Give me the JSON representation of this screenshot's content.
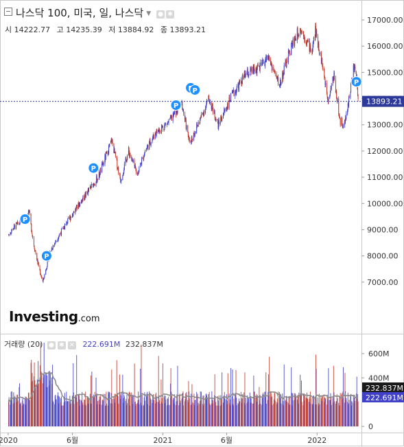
{
  "header": {
    "symbol_title": "나스닥 100, 미국, 일, 나스닥",
    "ohlc": [
      {
        "label": "시",
        "value": "14222.77"
      },
      {
        "label": "고",
        "value": "14235.39"
      },
      {
        "label": "저",
        "value": "13884.92"
      },
      {
        "label": "종",
        "value": "13893.21"
      }
    ]
  },
  "volume_header": {
    "title": "거래량 (20)",
    "value_blue": "222.691M",
    "value_dark": "232.837M"
  },
  "logo": {
    "brand": "Investing",
    "suffix": ".com"
  },
  "colors": {
    "up": "#3f3fc7",
    "down": "#c0392b",
    "marker": "#1e90ff",
    "price_line": "#2d3a9a",
    "ma_line": "#8a8a8a",
    "badge_dark": "#1a1a1a",
    "badge_blue": "#3f3fc7"
  },
  "chart_data": {
    "type": "candlestick",
    "price_axis": {
      "ylim": [
        6000,
        17800
      ],
      "ticks": [
        "17000.00",
        "16000.00",
        "15000.00",
        "14000.00",
        "13000.00",
        "12000.00",
        "11000.00",
        "10000.00",
        "9000.00",
        "8000.00",
        "7000.00"
      ]
    },
    "current_price_label": "13893.21",
    "volume_axis": {
      "ylim": [
        0,
        700
      ],
      "ticks": [
        "600M",
        "400M",
        "0"
      ],
      "last_labels": [
        "232.837M",
        "222.691M"
      ]
    },
    "x_ticks": [
      "2020",
      "6월",
      "2021",
      "6월",
      "2022"
    ],
    "marker_symbol": "P",
    "price_path": [
      {
        "d": "2020-01-02",
        "c": 8800
      },
      {
        "d": "2020-01-15",
        "c": 9100
      },
      {
        "d": "2020-02-01",
        "c": 9300
      },
      {
        "d": "2020-02-19",
        "c": 9700
      },
      {
        "d": "2020-03-01",
        "c": 8500
      },
      {
        "d": "2020-03-10",
        "c": 7800
      },
      {
        "d": "2020-03-23",
        "c": 7000
      },
      {
        "d": "2020-04-10",
        "c": 8200
      },
      {
        "d": "2020-05-01",
        "c": 8800
      },
      {
        "d": "2020-06-01",
        "c": 9600
      },
      {
        "d": "2020-07-01",
        "c": 10300
      },
      {
        "d": "2020-08-01",
        "c": 11000
      },
      {
        "d": "2020-09-02",
        "c": 12400
      },
      {
        "d": "2020-09-23",
        "c": 10900
      },
      {
        "d": "2020-10-12",
        "c": 12000
      },
      {
        "d": "2020-11-01",
        "c": 11100
      },
      {
        "d": "2020-11-20",
        "c": 12000
      },
      {
        "d": "2020-12-15",
        "c": 12700
      },
      {
        "d": "2021-01-15",
        "c": 13100
      },
      {
        "d": "2021-02-15",
        "c": 13800
      },
      {
        "d": "2021-03-05",
        "c": 12300
      },
      {
        "d": "2021-03-25",
        "c": 13000
      },
      {
        "d": "2021-04-20",
        "c": 14000
      },
      {
        "d": "2021-05-12",
        "c": 13000
      },
      {
        "d": "2021-06-10",
        "c": 14000
      },
      {
        "d": "2021-07-15",
        "c": 14900
      },
      {
        "d": "2021-08-20",
        "c": 15200
      },
      {
        "d": "2021-09-07",
        "c": 15600
      },
      {
        "d": "2021-10-04",
        "c": 14500
      },
      {
        "d": "2021-11-01",
        "c": 16000
      },
      {
        "d": "2021-11-22",
        "c": 16700
      },
      {
        "d": "2021-12-20",
        "c": 15800
      },
      {
        "d": "2021-12-28",
        "c": 16600
      },
      {
        "d": "2022-01-10",
        "c": 15600
      },
      {
        "d": "2022-01-27",
        "c": 14000
      },
      {
        "d": "2022-02-10",
        "c": 14900
      },
      {
        "d": "2022-02-24",
        "c": 13100
      },
      {
        "d": "2022-03-08",
        "c": 13050
      },
      {
        "d": "2022-03-29",
        "c": 15200
      },
      {
        "d": "2022-04-05",
        "c": 14700
      },
      {
        "d": "2022-04-08",
        "c": 13893
      }
    ],
    "markers": [
      {
        "d": "2020-02-10",
        "price": 9400
      },
      {
        "d": "2020-04-01",
        "price": 8000
      },
      {
        "d": "2020-07-21",
        "price": 11350
      },
      {
        "d": "2021-02-01",
        "price": 13750
      },
      {
        "d": "2021-03-08",
        "price": 14410
      },
      {
        "d": "2021-03-18",
        "price": 14330
      },
      {
        "d": "2022-04-04",
        "price": 14640
      }
    ]
  }
}
